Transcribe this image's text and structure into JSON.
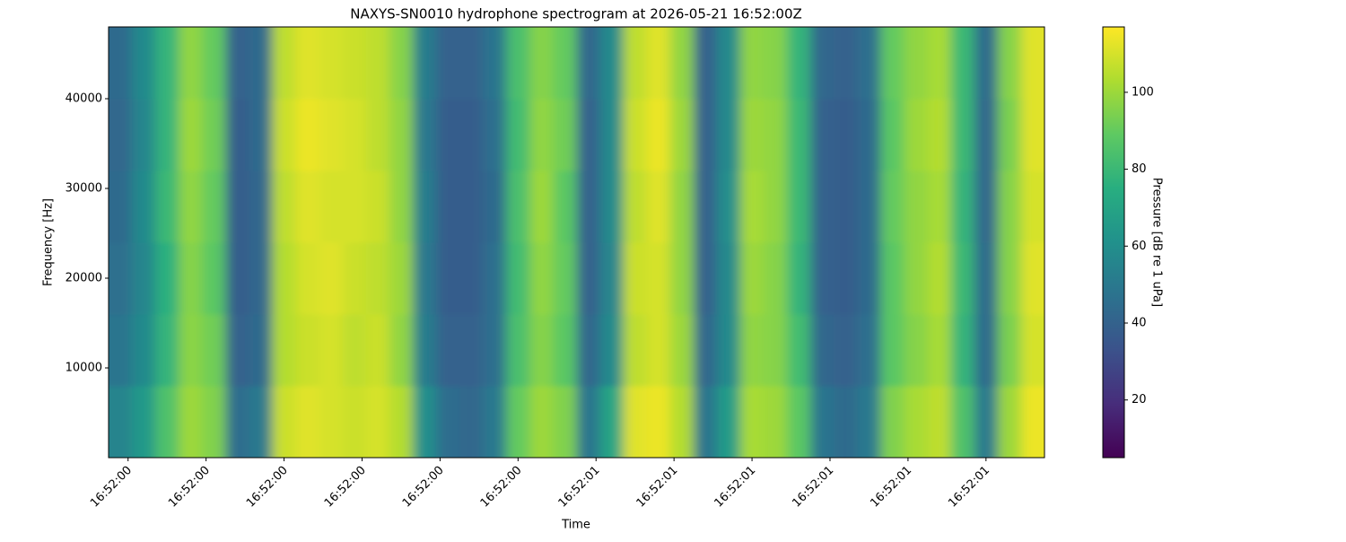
{
  "chart_data": {
    "type": "heatmap",
    "title": "NAXYS-SN0010 hydrophone spectrogram at 2026-05-21 16:52:00Z",
    "xlabel": "Time",
    "ylabel": "Frequency [Hz]",
    "colorbar_label": "Pressure [dB re 1 uPa]",
    "colormap": "viridis",
    "x": [
      0.39,
      0.42,
      0.45,
      0.48,
      0.51,
      0.54,
      0.57,
      0.6,
      0.63,
      0.66,
      0.69,
      0.72,
      0.75,
      0.78,
      0.81,
      0.84,
      0.87,
      0.9,
      0.93,
      0.96,
      0.99,
      1.02,
      1.05,
      1.08,
      1.11,
      1.14,
      1.17,
      1.2,
      1.23,
      1.26,
      1.29,
      1.32,
      1.35,
      1.38,
      1.41,
      1.44,
      1.47,
      1.5,
      1.53,
      1.56
    ],
    "y": [
      4000,
      12000,
      20000,
      28000,
      36000,
      44000
    ],
    "z": [
      [
        55,
        65,
        85,
        100,
        95,
        45,
        50,
        108,
        112,
        110,
        108,
        110,
        104,
        60,
        45,
        42,
        50,
        90,
        100,
        95,
        48,
        70,
        112,
        114,
        104,
        48,
        66,
        102,
        100,
        88,
        48,
        44,
        50,
        95,
        102,
        106,
        85,
        50,
        100,
        114
      ],
      [
        48,
        58,
        78,
        97,
        92,
        40,
        44,
        104,
        108,
        110,
        106,
        108,
        98,
        52,
        40,
        40,
        46,
        84,
        96,
        88,
        42,
        58,
        106,
        110,
        100,
        42,
        58,
        98,
        96,
        82,
        42,
        40,
        46,
        88,
        96,
        102,
        78,
        44,
        94,
        110
      ],
      [
        46,
        56,
        76,
        96,
        88,
        38,
        42,
        104,
        110,
        112,
        108,
        106,
        100,
        50,
        38,
        38,
        46,
        82,
        98,
        90,
        40,
        56,
        108,
        110,
        98,
        40,
        58,
        100,
        96,
        78,
        40,
        38,
        44,
        88,
        98,
        104,
        80,
        44,
        96,
        112
      ],
      [
        44,
        58,
        80,
        98,
        90,
        38,
        42,
        106,
        112,
        110,
        110,
        108,
        98,
        52,
        38,
        38,
        44,
        84,
        100,
        88,
        40,
        58,
        106,
        112,
        98,
        40,
        60,
        102,
        98,
        80,
        40,
        38,
        44,
        90,
        98,
        102,
        78,
        42,
        96,
        110
      ],
      [
        42,
        56,
        78,
        100,
        92,
        38,
        44,
        108,
        114,
        112,
        110,
        106,
        98,
        50,
        38,
        38,
        46,
        82,
        98,
        92,
        40,
        58,
        108,
        114,
        100,
        40,
        58,
        100,
        98,
        80,
        40,
        38,
        44,
        88,
        100,
        104,
        80,
        42,
        94,
        112
      ],
      [
        44,
        58,
        78,
        98,
        90,
        40,
        44,
        106,
        112,
        110,
        108,
        106,
        96,
        52,
        40,
        40,
        48,
        84,
        96,
        90,
        42,
        58,
        106,
        112,
        98,
        40,
        58,
        98,
        96,
        78,
        42,
        40,
        46,
        90,
        98,
        102,
        80,
        44,
        96,
        112
      ]
    ],
    "xlim": [
      0.375,
      1.575
    ],
    "xticks": [
      {
        "value": 0.4,
        "label": "16:52:00"
      },
      {
        "value": 0.5,
        "label": "16:52:00"
      },
      {
        "value": 0.6,
        "label": "16:52:00"
      },
      {
        "value": 0.7,
        "label": "16:52:00"
      },
      {
        "value": 0.8,
        "label": "16:52:00"
      },
      {
        "value": 0.9,
        "label": "16:52:00"
      },
      {
        "value": 1.0,
        "label": "16:52:01"
      },
      {
        "value": 1.1,
        "label": "16:52:01"
      },
      {
        "value": 1.2,
        "label": "16:52:01"
      },
      {
        "value": 1.3,
        "label": "16:52:01"
      },
      {
        "value": 1.4,
        "label": "16:52:01"
      },
      {
        "value": 1.5,
        "label": "16:52:01"
      }
    ],
    "ylim": [
      0,
      48000
    ],
    "yticks": [
      10000,
      20000,
      30000,
      40000
    ],
    "clim": [
      5,
      117
    ],
    "cticks": [
      20,
      40,
      60,
      80,
      100
    ]
  }
}
